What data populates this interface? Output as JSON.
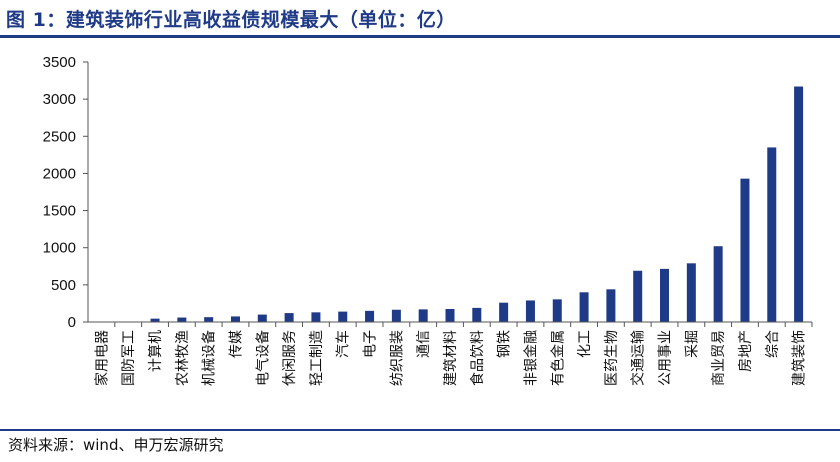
{
  "header": {
    "title": "图 1：建筑装饰行业高收益债规模最大（单位：亿）"
  },
  "footer": {
    "source": "资料来源：wind、申万宏源研究"
  },
  "colors": {
    "accent": "#1f3a87",
    "bar": "#1f3a87",
    "axis": "#555555",
    "text": "#111111"
  },
  "chart_data": {
    "type": "bar",
    "title": "建筑装饰行业高收益债规模最大（单位：亿）",
    "xlabel": "",
    "ylabel": "",
    "ylim": [
      0,
      3500
    ],
    "yticks": [
      0,
      500,
      1000,
      1500,
      2000,
      2500,
      3000,
      3500
    ],
    "grid": false,
    "legend": "none",
    "categories": [
      "家用电器",
      "国防军工",
      "计算机",
      "农林牧渔",
      "机械设备",
      "传媒",
      "电气设备",
      "休闲服务",
      "轻工制造",
      "汽车",
      "电子",
      "纺织服装",
      "通信",
      "建筑材料",
      "食品饮料",
      "钢铁",
      "非银金融",
      "有色金属",
      "化工",
      "医药生物",
      "交通运输",
      "公用事业",
      "采掘",
      "商业贸易",
      "房地产",
      "综合",
      "建筑装饰"
    ],
    "values": [
      3,
      5,
      45,
      60,
      65,
      75,
      100,
      120,
      130,
      140,
      150,
      165,
      170,
      175,
      190,
      260,
      290,
      305,
      400,
      440,
      690,
      715,
      790,
      1020,
      1930,
      2350,
      3170
    ]
  }
}
